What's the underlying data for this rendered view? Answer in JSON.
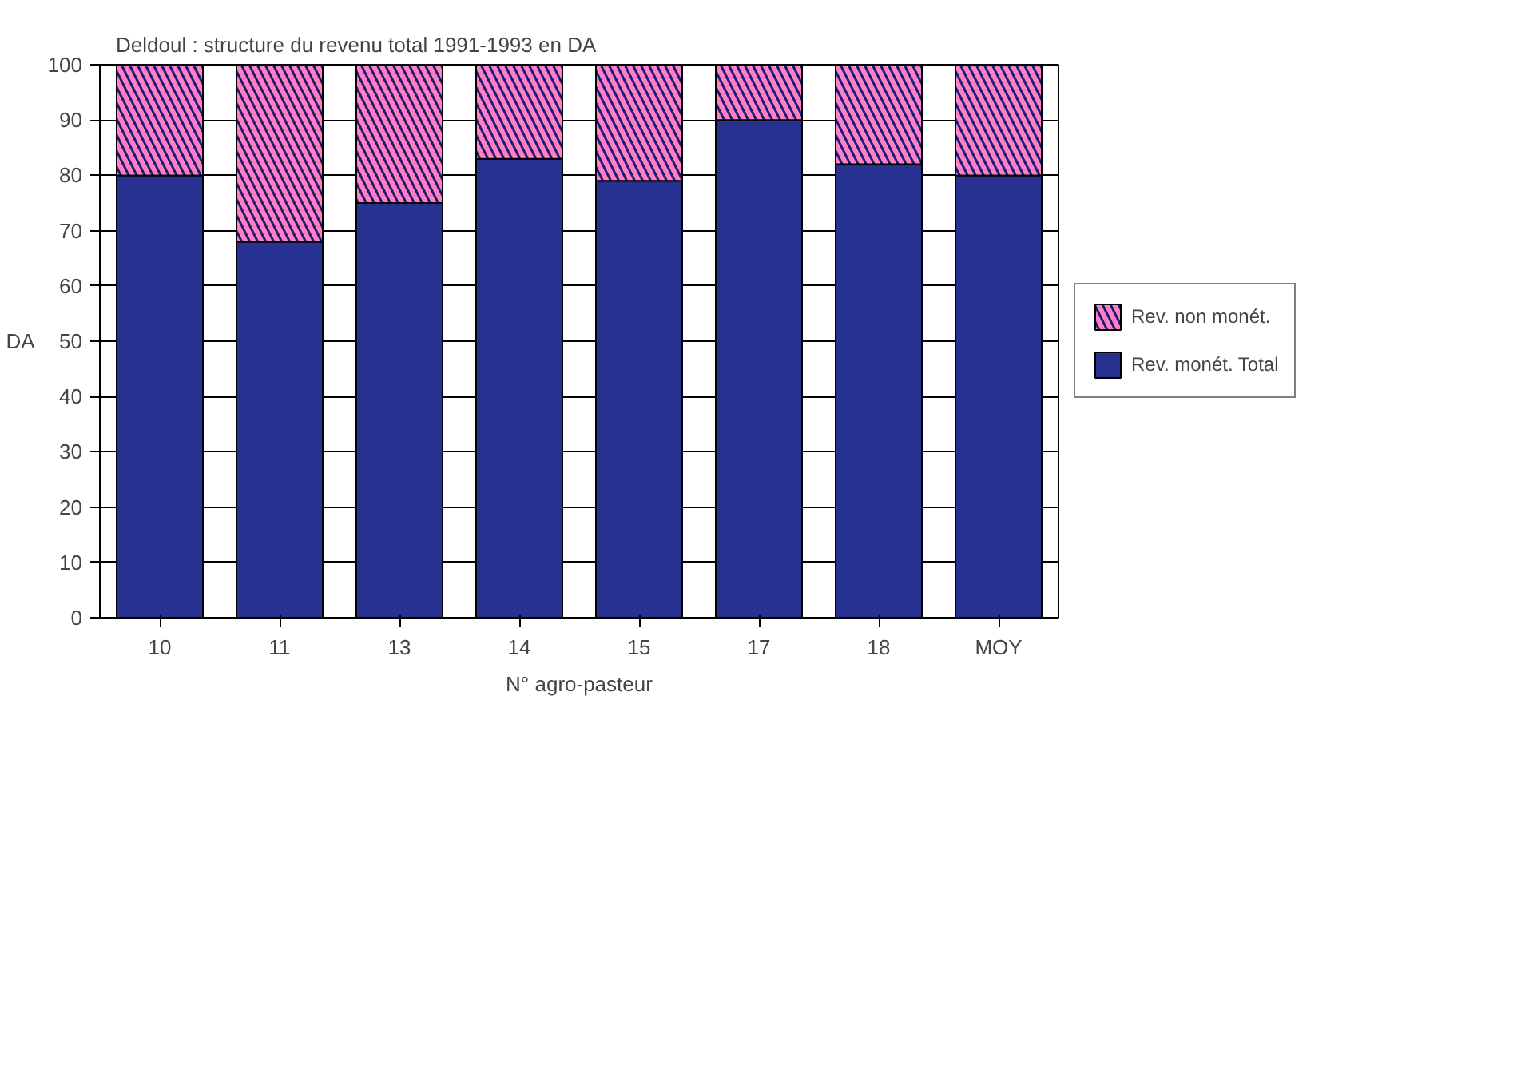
{
  "chart_data": {
    "type": "bar",
    "title": "Deldoul : structure du revenu total   1991-1993 en DA",
    "xlabel": "N° agro-pasteur",
    "ylabel": "DA",
    "categories": [
      "10",
      "11",
      "13",
      "14",
      "15",
      "17",
      "18",
      "MOY"
    ],
    "stacked": true,
    "series": [
      {
        "name": "Rev. monét. Total",
        "color": "#27318f",
        "values": [
          80,
          68,
          75,
          83,
          79,
          90,
          82,
          80
        ]
      },
      {
        "name": "Rev. non monét.",
        "color": "#1a1a7a",
        "values": [
          20,
          32,
          25,
          17,
          21,
          10,
          18,
          20
        ]
      }
    ],
    "ylim": [
      0,
      100
    ],
    "yticks": [
      0,
      10,
      20,
      30,
      40,
      50,
      60,
      70,
      80,
      90,
      100
    ],
    "grid": "y",
    "legend": "right"
  }
}
